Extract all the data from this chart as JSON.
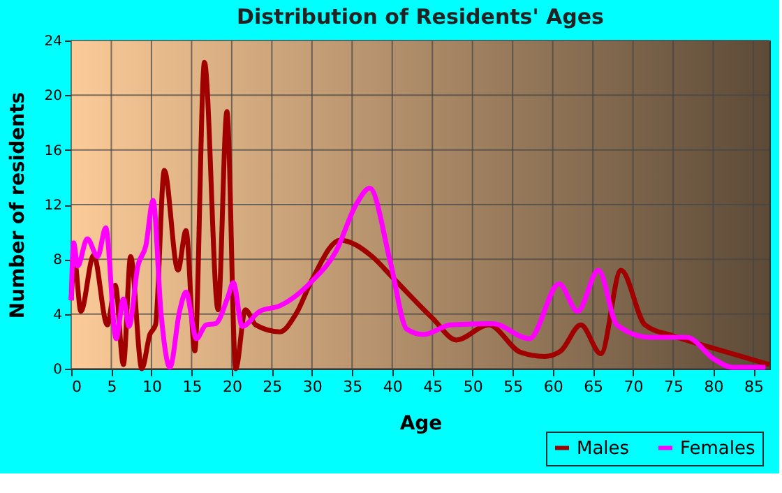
{
  "chart_data": {
    "type": "line",
    "title": "Distribution of Residents' Ages",
    "xlabel": "Age",
    "ylabel": "Number of residents",
    "xlim": [
      0,
      87
    ],
    "xticks": [
      0,
      5,
      10,
      15,
      20,
      25,
      30,
      35,
      40,
      45,
      50,
      55,
      60,
      65,
      70,
      75,
      80,
      85
    ],
    "ylim": [
      0,
      24
    ],
    "yticks": [
      0,
      4,
      8,
      12,
      16,
      20,
      24
    ],
    "grid": true,
    "legend": "bottom right",
    "marker": "none",
    "line_style": "solid",
    "series": [
      {
        "name": "Males",
        "color": "#a00000",
        "x": [
          0,
          0.4,
          1.2,
          2.8,
          4.5,
          5.5,
          6.5,
          7.4,
          8.8,
          9.8,
          10.5,
          11.6,
          13.3,
          14.3,
          15.4,
          16.6,
          18.3,
          19.4,
          20.5,
          21.7,
          23,
          26,
          28,
          30,
          33.5,
          37.5,
          40,
          45,
          48,
          52,
          56,
          59,
          61,
          63.5,
          66,
          68.5,
          71.5,
          75,
          80,
          87
        ],
        "values": [
          5,
          8,
          4.2,
          8.3,
          3.2,
          6.1,
          0.3,
          8.2,
          0,
          2.5,
          3.2,
          14.5,
          7.2,
          10.1,
          1.3,
          22.4,
          4.3,
          18.8,
          0,
          4.3,
          3.2,
          2.7,
          4,
          6.5,
          9.4,
          8.2,
          6.7,
          3.7,
          2.1,
          3.2,
          1.2,
          0.9,
          1.3,
          3.2,
          1.1,
          7.2,
          3.2,
          2.4,
          1.5,
          0.3
        ]
      },
      {
        "name": "Females",
        "color": "#ff00ff",
        "x": [
          0,
          0.3,
          0.8,
          2,
          3.3,
          4.3,
          5.6,
          6.5,
          7.2,
          8.3,
          9.3,
          10.2,
          11.2,
          12.3,
          13.5,
          14.3,
          15.6,
          16.8,
          18,
          19.5,
          20.2,
          21.3,
          23.5,
          26,
          30,
          33,
          35.5,
          37.2,
          39.8,
          41.8,
          43.9,
          47.3,
          52.5,
          57.1,
          60.8,
          63.1,
          65.7,
          68,
          72,
          76.7,
          80.1,
          82.4,
          86.5
        ],
        "values": [
          5,
          9.2,
          7.5,
          9.5,
          8.2,
          10.3,
          2.2,
          5.1,
          3.1,
          7.5,
          9,
          12.3,
          4,
          0.1,
          4.2,
          5.6,
          2.2,
          3.2,
          3.3,
          5.2,
          6.3,
          3.1,
          4.2,
          4.6,
          6.4,
          8.6,
          12,
          13.2,
          7.7,
          2.9,
          2.5,
          3.2,
          3.3,
          2.2,
          6.2,
          4.2,
          7.2,
          3.2,
          2.3,
          2.3,
          0.7,
          0.1,
          0.1
        ]
      }
    ]
  }
}
